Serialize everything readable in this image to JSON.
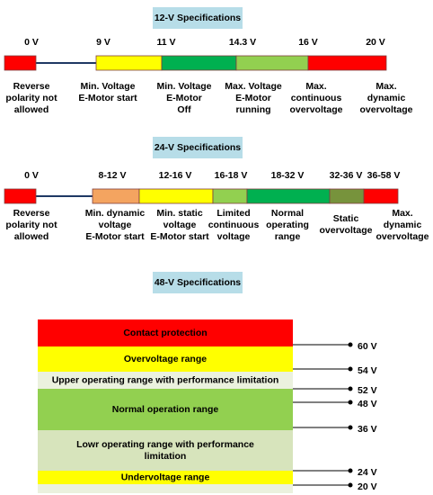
{
  "sections": [
    {
      "title": "12-V Specifications",
      "voltages": [
        "0 V",
        "9 V",
        "11 V",
        "14.3 V",
        "16 V",
        "20 V"
      ],
      "descriptions": [
        [
          "Reverse",
          "polarity not",
          "allowed"
        ],
        [
          "Min. Voltage",
          "E-Motor start"
        ],
        [
          "Min. Voltage",
          "E-Motor",
          "Off"
        ],
        [
          "Max. Voltage",
          "E-Motor",
          "running"
        ],
        [
          "Max.",
          "continuous",
          "overvoltage"
        ],
        [
          "Max.",
          "dynamic",
          "overvoltage"
        ]
      ]
    },
    {
      "title": "24-V Specifications",
      "voltages": [
        "0 V",
        "8-12 V",
        "12-16 V",
        "16-18 V",
        "18-32 V",
        "32-36 V",
        "36-58 V"
      ],
      "descriptions": [
        [
          "Reverse",
          "polarity not",
          "allowed"
        ],
        [
          "Min. dynamic",
          "voltage",
          "E-Motor start"
        ],
        [
          "Min. static",
          "voltage",
          "E-Motor start"
        ],
        [
          "Limited",
          "continuous",
          "voltage"
        ],
        [
          "Normal",
          "operating",
          "range"
        ],
        [
          "Static",
          "overvoltage"
        ],
        [
          "Max.",
          "dynamic",
          "overvoltage"
        ]
      ]
    }
  ],
  "spec48": {
    "title": "48-V Specifications",
    "ranges": [
      [
        "Contact protection"
      ],
      [
        "Overvoltage range"
      ],
      [
        "Upper operating range with performance limitation"
      ],
      [
        "Normal operation range"
      ],
      [
        "Lowr operating range with performance",
        "limitation"
      ],
      [
        "Undervoltage range"
      ]
    ],
    "voltages": [
      "60 V",
      "54 V",
      "52 V",
      "48 V",
      "36 V",
      "24 V",
      "20 V"
    ]
  }
}
